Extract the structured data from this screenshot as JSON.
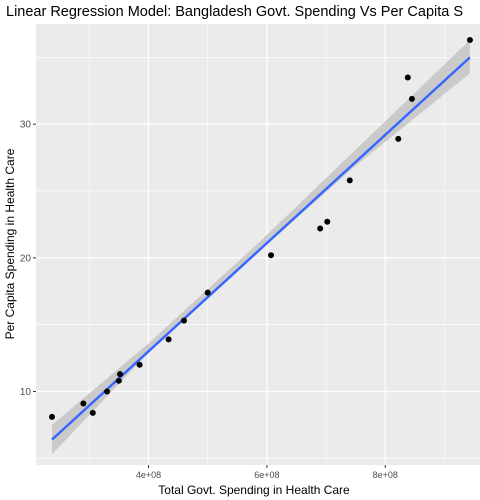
{
  "chart_data": {
    "type": "scatter",
    "title": "Linear Regression Model: Bangladesh Govt. Spending Vs Per Capita S",
    "xlabel": "Total Govt. Spending in Health Care",
    "ylabel": "Per Capita Spending in Health Care",
    "xlim": [
      210000000,
      960000000
    ],
    "ylim": [
      4.5,
      37.5
    ],
    "x_ticks": [
      400000000,
      600000000,
      800000000
    ],
    "x_tick_labels": [
      "4e+08",
      "6e+08",
      "8e+08"
    ],
    "y_ticks": [
      10,
      20,
      30
    ],
    "y_tick_labels": [
      "10",
      "20",
      "30"
    ],
    "grid": true,
    "legend": "none",
    "points": [
      {
        "x": 237000000,
        "y": 8.1
      },
      {
        "x": 290000000,
        "y": 9.1
      },
      {
        "x": 306000000,
        "y": 8.4
      },
      {
        "x": 330000000,
        "y": 10.0
      },
      {
        "x": 350000000,
        "y": 10.8
      },
      {
        "x": 352000000,
        "y": 11.3
      },
      {
        "x": 385000000,
        "y": 12.0
      },
      {
        "x": 434000000,
        "y": 13.9
      },
      {
        "x": 460000000,
        "y": 15.3
      },
      {
        "x": 500000000,
        "y": 17.4
      },
      {
        "x": 607000000,
        "y": 20.2
      },
      {
        "x": 690000000,
        "y": 22.2
      },
      {
        "x": 702000000,
        "y": 22.7
      },
      {
        "x": 740000000,
        "y": 25.8
      },
      {
        "x": 822000000,
        "y": 28.9
      },
      {
        "x": 838000000,
        "y": 33.5
      },
      {
        "x": 845000000,
        "y": 31.9
      },
      {
        "x": 943000000,
        "y": 36.3
      }
    ],
    "regression_line": {
      "x": [
        237000000,
        943000000
      ],
      "y": [
        6.4,
        35.0
      ]
    },
    "confidence_band": {
      "x": [
        237000000,
        400000000,
        590000000,
        750000000,
        943000000
      ],
      "lower": [
        5.3,
        12.9,
        20.6,
        26.9,
        33.8
      ],
      "upper": [
        7.5,
        13.6,
        21.3,
        28.1,
        36.3
      ]
    },
    "colors": {
      "panel": "#ebebeb",
      "grid": "#ffffff",
      "line": "#3366ff",
      "band": "#c4c4c4",
      "point": "#000000",
      "axis_text": "#4d4d4d"
    }
  }
}
